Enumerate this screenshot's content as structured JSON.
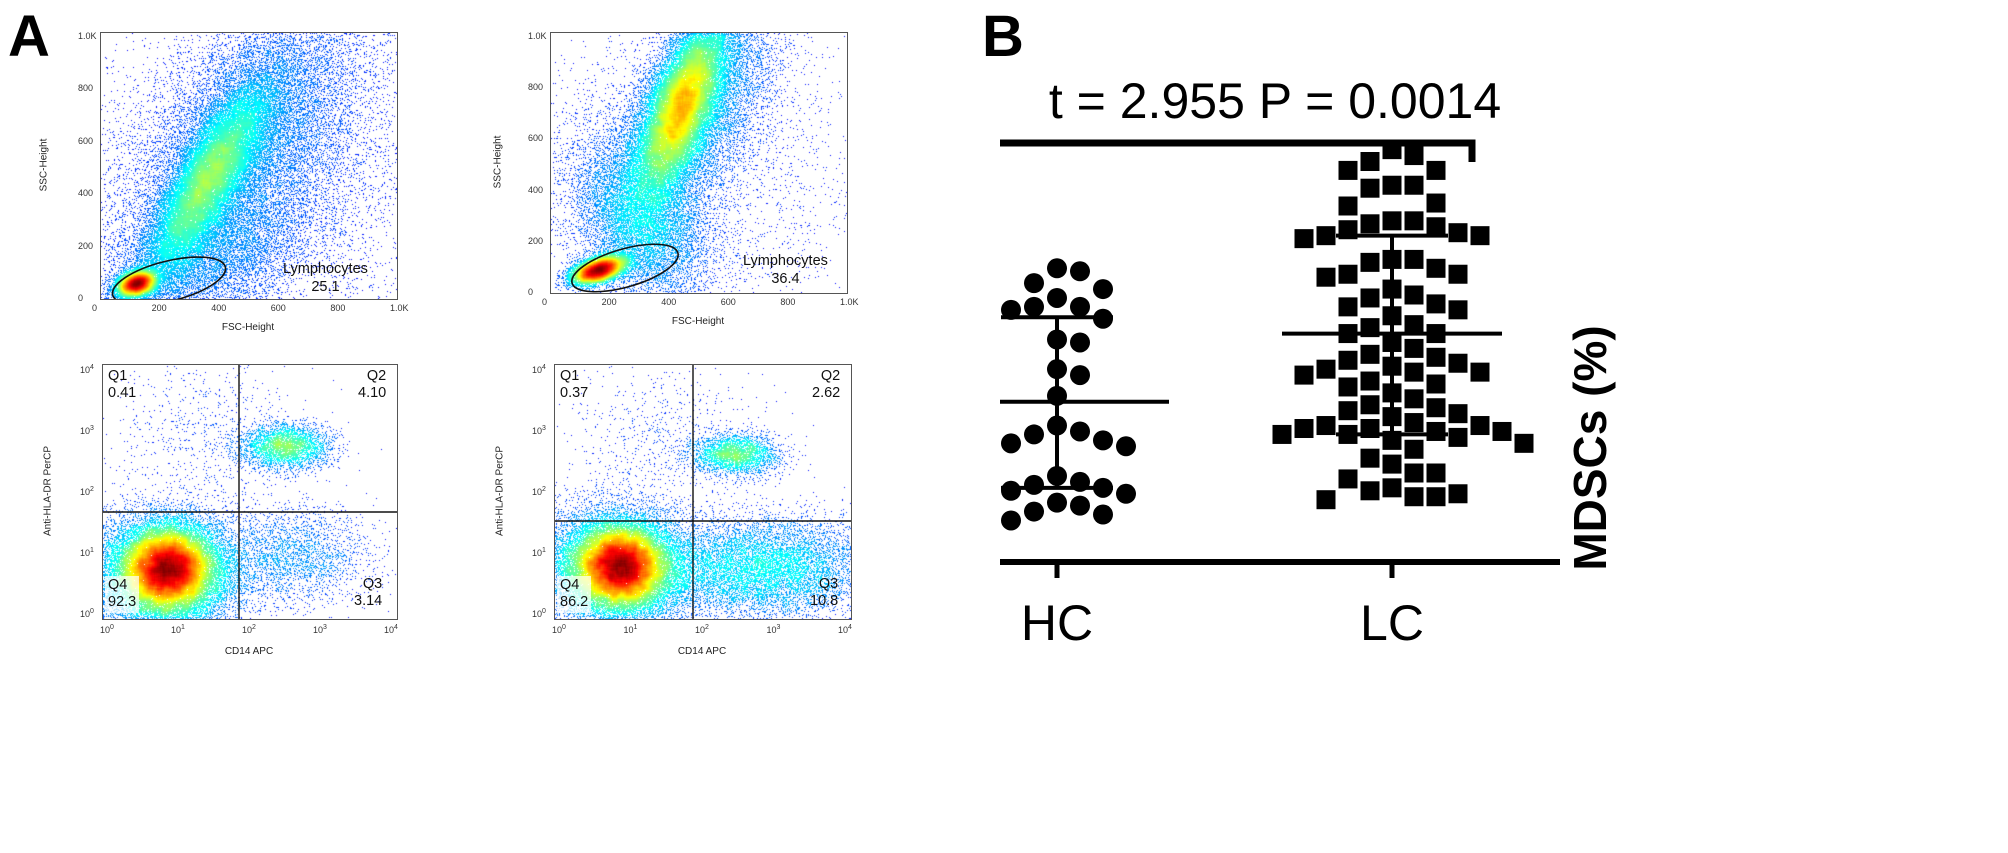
{
  "panel_labels": {
    "a": "A",
    "b": "B"
  },
  "flow_panels": [
    {
      "id": "fsc-ssc-hc",
      "type": "density_scatter",
      "scale": "linear",
      "x_label": "FSC-Height",
      "y_label": "SSC-Height",
      "x_ticks": [
        "0",
        "200",
        "400",
        "600",
        "800",
        "1.0K"
      ],
      "y_ticks": [
        "0",
        "200",
        "400",
        "600",
        "800",
        "1.0K"
      ],
      "gate": {
        "name": "Lymphocytes",
        "value": "25.1"
      }
    },
    {
      "id": "fsc-ssc-lc",
      "type": "density_scatter",
      "scale": "linear",
      "x_label": "FSC-Height",
      "y_label": "SSC-Height",
      "x_ticks": [
        "0",
        "200",
        "400",
        "600",
        "800",
        "1.0K"
      ],
      "y_ticks": [
        "0",
        "200",
        "400",
        "600",
        "800",
        "1.0K"
      ],
      "gate": {
        "name": "Lymphocytes",
        "value": "36.4"
      }
    },
    {
      "id": "cd14-hladr-hc",
      "type": "quadrant_density",
      "scale": "log",
      "x_label": "CD14 APC",
      "y_label": "Anti-HLA-DR PerCP",
      "x_ticks": [
        "10^0",
        "10^1",
        "10^2",
        "10^3",
        "10^4"
      ],
      "y_ticks": [
        "10^0",
        "10^1",
        "10^2",
        "10^3",
        "10^4"
      ],
      "quadrants": [
        {
          "name": "Q1",
          "value": "0.41"
        },
        {
          "name": "Q2",
          "value": "4.10"
        },
        {
          "name": "Q3",
          "value": "3.14"
        },
        {
          "name": "Q4",
          "value": "92.3"
        }
      ]
    },
    {
      "id": "cd14-hladr-lc",
      "type": "quadrant_density",
      "scale": "log",
      "x_label": "CD14 APC",
      "y_label": "Anti-HLA-DR PerCP",
      "x_ticks": [
        "10^0",
        "10^1",
        "10^2",
        "10^3",
        "10^4"
      ],
      "y_ticks": [
        "10^0",
        "10^1",
        "10^2",
        "10^3",
        "10^4"
      ],
      "quadrants": [
        {
          "name": "Q1",
          "value": "0.37"
        },
        {
          "name": "Q2",
          "value": "2.62"
        },
        {
          "name": "Q3",
          "value": "10.8"
        },
        {
          "name": "Q4",
          "value": "86.2"
        }
      ]
    }
  ],
  "chart_data": {
    "type": "scatter",
    "title": "t = 2.955 P = 0.0014",
    "ylabel": "MDSCs (%)",
    "xlabel": "",
    "categories": [
      "HC",
      "LC"
    ],
    "ylim": [
      0,
      15
    ],
    "yticks": [
      0,
      5,
      10,
      15
    ],
    "grid": false,
    "legend": "none",
    "series": [
      {
        "name": "HC",
        "marker": "circle",
        "mean": 5.4,
        "sd_upper": 8.25,
        "sd_lower": 2.5,
        "values": [
          9.9,
          9.8,
          9.4,
          9.2,
          8.9,
          8.6,
          8.6,
          8.5,
          8.2,
          7.5,
          7.4,
          6.5,
          6.3,
          5.6,
          4.6,
          4.4,
          4.3,
          4.1,
          4.0,
          3.9,
          2.9,
          2.7,
          2.6,
          2.5,
          2.4,
          2.3,
          2.0,
          1.9,
          1.7,
          1.6,
          1.4
        ]
      },
      {
        "name": "LC",
        "marker": "square",
        "mean": 7.7,
        "sd_upper": 11.0,
        "sd_lower": 4.3,
        "values": [
          13.9,
          13.7,
          13.5,
          13.2,
          13.2,
          12.7,
          12.7,
          12.6,
          12.1,
          12.0,
          11.5,
          11.5,
          11.4,
          11.3,
          11.2,
          11.1,
          11.0,
          11.0,
          10.9,
          10.2,
          10.2,
          10.1,
          9.9,
          9.7,
          9.7,
          9.6,
          9.2,
          9.0,
          8.9,
          8.7,
          8.6,
          8.5,
          8.3,
          8.0,
          7.9,
          7.7,
          7.7,
          7.4,
          7.2,
          7.0,
          6.9,
          6.8,
          6.7,
          6.6,
          6.5,
          6.4,
          6.4,
          6.3,
          6.1,
          6.0,
          5.9,
          5.7,
          5.5,
          5.3,
          5.2,
          5.1,
          5.0,
          4.9,
          4.7,
          4.6,
          4.6,
          4.5,
          4.5,
          4.4,
          4.4,
          4.3,
          4.3,
          4.2,
          4.1,
          4.0,
          3.8,
          3.5,
          3.3,
          3.0,
          3.0,
          2.8,
          2.5,
          2.4,
          2.3,
          2.2,
          2.2,
          2.1
        ]
      }
    ]
  }
}
